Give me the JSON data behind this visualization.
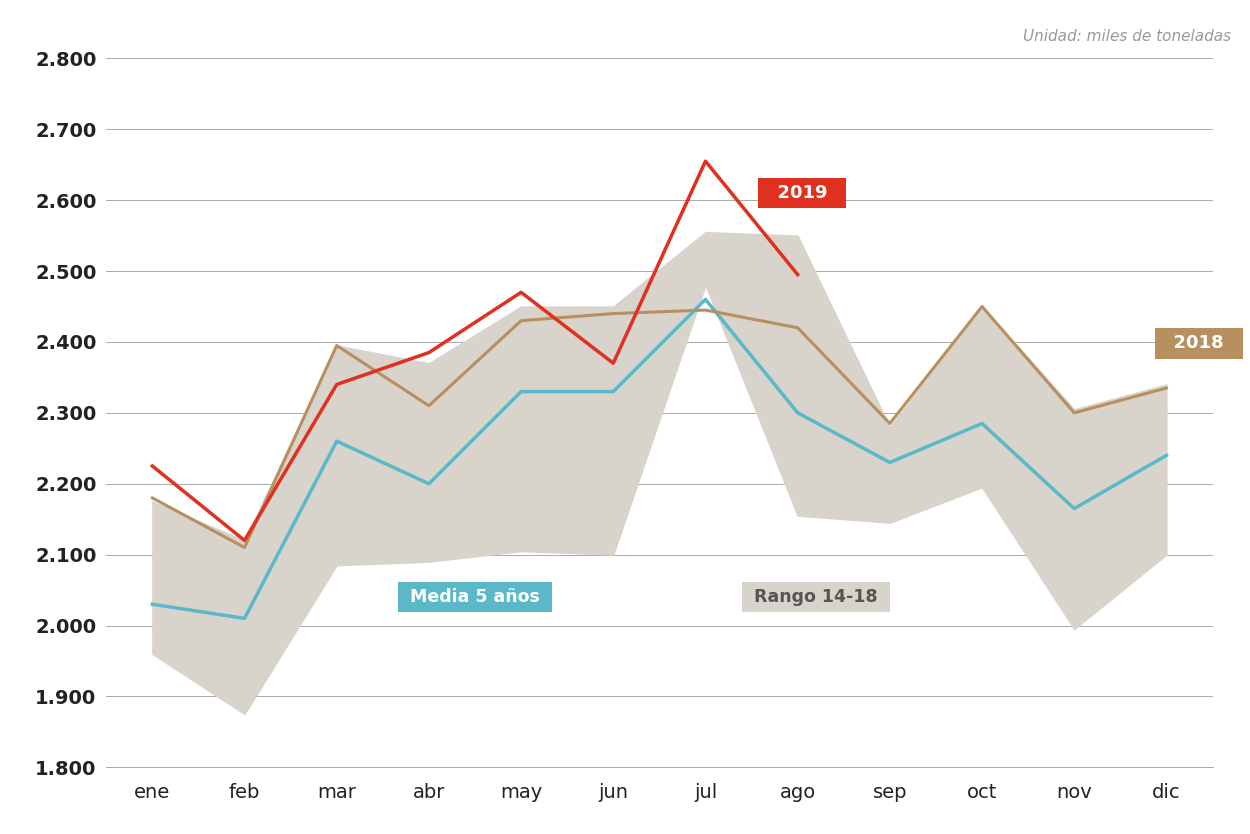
{
  "months": [
    "ene",
    "feb",
    "mar",
    "abr",
    "may",
    "jun",
    "jul",
    "ago",
    "sep",
    "oct",
    "nov",
    "dic"
  ],
  "media5": [
    2030,
    2010,
    2260,
    2200,
    2330,
    2330,
    2460,
    2300,
    2230,
    2285,
    2165,
    2240
  ],
  "rango_max": [
    2175,
    2120,
    2395,
    2370,
    2450,
    2450,
    2555,
    2550,
    2280,
    2450,
    2305,
    2340
  ],
  "rango_min": [
    1960,
    1875,
    2085,
    2090,
    2105,
    2100,
    2480,
    2155,
    2145,
    2195,
    1995,
    2100
  ],
  "year2019": [
    2225,
    2120,
    2340,
    2385,
    2470,
    2370,
    2655,
    2495,
    null,
    null,
    null,
    null
  ],
  "year2018": [
    2180,
    2110,
    2395,
    2310,
    2430,
    2440,
    2445,
    2420,
    2285,
    2450,
    2300,
    2335
  ],
  "color_media5": "#5ab8c8",
  "color_2019": "#e03020",
  "color_2018": "#b89060",
  "color_range_fill": "#d8d4cc",
  "ylim_min": 1800,
  "ylim_max": 2800,
  "yticks": [
    1800,
    1900,
    2000,
    2100,
    2200,
    2300,
    2400,
    2500,
    2600,
    2700,
    2800
  ],
  "unit_label": "Unidad: miles de toneladas",
  "label_2019": "2019",
  "label_2018": "2018",
  "label_media": "Media 5 años",
  "label_rango": "Rango 14-18",
  "background_color": "#ffffff",
  "grid_color": "#aaaaaa",
  "tick_color": "#222222"
}
